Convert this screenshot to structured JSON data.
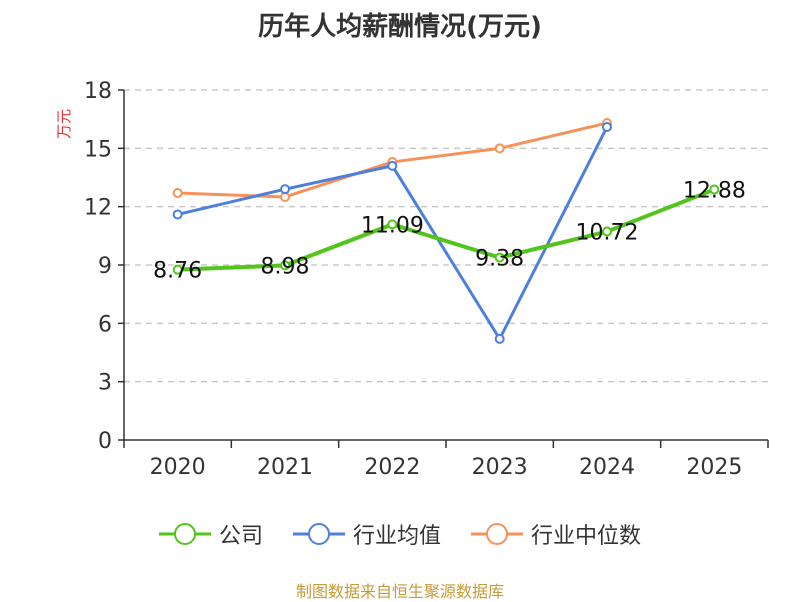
{
  "chart_data": {
    "type": "line",
    "title": "历年人均薪酬情况(万元)",
    "ylabel": "万元",
    "xlabel": "",
    "categories": [
      "2020",
      "2021",
      "2022",
      "2023",
      "2024",
      "2025"
    ],
    "ylim": [
      0,
      18
    ],
    "yticks": [
      0,
      3,
      6,
      9,
      12,
      15,
      18
    ],
    "grid": true,
    "legend_position": "bottom",
    "series": [
      {
        "name": "公司",
        "color": "#52c41a",
        "values": [
          8.76,
          8.98,
          11.09,
          9.38,
          10.72,
          12.88
        ],
        "data_labels": [
          "8.76",
          "8.98",
          "11.09",
          "9.38",
          "10.72",
          "12.88"
        ]
      },
      {
        "name": "行业均值",
        "color": "#4f7fdc",
        "values": [
          11.6,
          12.9,
          14.1,
          5.2,
          16.1,
          null
        ]
      },
      {
        "name": "行业中位数",
        "color": "#f5925a",
        "values": [
          12.7,
          12.5,
          14.3,
          15.0,
          16.3,
          null
        ]
      }
    ]
  },
  "source": "制图数据来自恒生聚源数据库"
}
